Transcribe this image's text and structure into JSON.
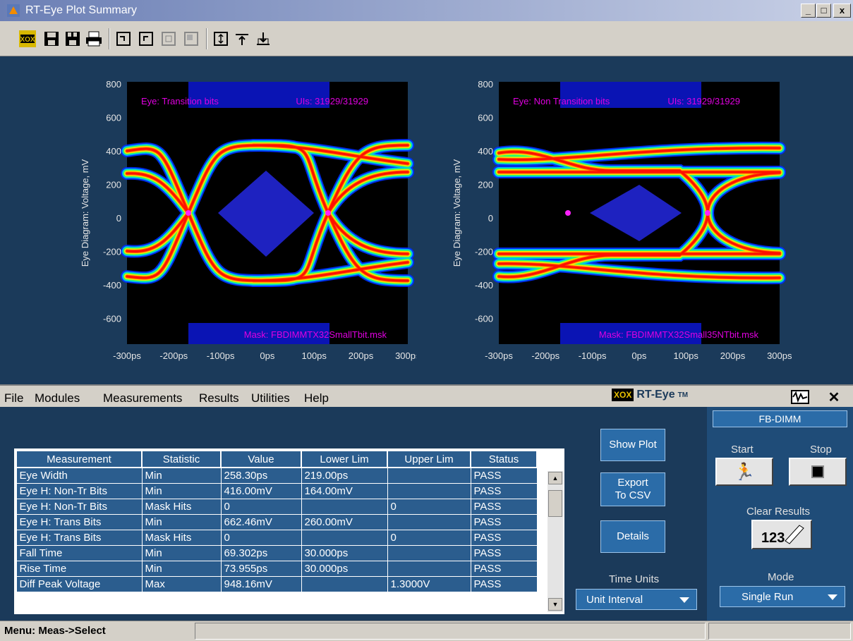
{
  "window": {
    "title": "RT-Eye Plot Summary",
    "min": "_",
    "max": "□",
    "close": "x"
  },
  "toolbar": {
    "icons": [
      "xox-icon",
      "save-icon",
      "save-all-icon",
      "print-icon",
      "zoom-in-icon",
      "zoom-out-icon",
      "zoom-fit-icon",
      "zoom-reset-icon",
      "cursor-v-icon",
      "cursor-top-icon",
      "cursor-bottom-icon"
    ]
  },
  "plots": [
    {
      "ylabel": "Eye Diagram: Voltage, mV",
      "yticks": [
        "800",
        "600",
        "400",
        "200",
        "0",
        "-200",
        "-400",
        "-600"
      ],
      "xticks": [
        "-300ps",
        "-200ps",
        "-100ps",
        "0ps",
        "100ps",
        "200ps",
        "300ps"
      ],
      "eye_label": "Eye: Transition bits",
      "uis": "UIs: 31929/31929",
      "mask": "Mask: FBDIMMTX32SmallTbit.msk"
    },
    {
      "ylabel": "Eye Diagram: Voltage, mV",
      "yticks": [
        "800",
        "600",
        "400",
        "200",
        "0",
        "-200",
        "-400",
        "-600"
      ],
      "xticks": [
        "-300ps",
        "-200ps",
        "-100ps",
        "0ps",
        "100ps",
        "200ps",
        "300ps"
      ],
      "eye_label": "Eye: Non Transition bits",
      "uis": "UIs: 31929/31929",
      "mask": "Mask: FBDIMMTX32Small35NTbit.msk"
    }
  ],
  "menu": {
    "file": "File",
    "modules": "Modules",
    "measurements": "Measurements",
    "results": "Results",
    "utilities": "Utilities",
    "help": "Help"
  },
  "brand": {
    "xox": "XOX",
    "name": "RT-Eye",
    "tm": "TM"
  },
  "table": {
    "headers": [
      "Measurement",
      "Statistic",
      "Value",
      "Lower Lim",
      "Upper Lim",
      "Status"
    ],
    "rows": [
      [
        "Eye Width",
        "Min",
        "258.30ps",
        "219.00ps",
        "",
        "PASS"
      ],
      [
        "Eye H: Non-Tr Bits",
        "Min",
        "416.00mV",
        "164.00mV",
        "",
        "PASS"
      ],
      [
        "Eye H: Non-Tr Bits",
        "Mask Hits",
        "0",
        "",
        "0",
        "PASS"
      ],
      [
        "Eye H: Trans Bits",
        "Min",
        "662.46mV",
        "260.00mV",
        "",
        "PASS"
      ],
      [
        "Eye H: Trans Bits",
        "Mask Hits",
        "0",
        "",
        "0",
        "PASS"
      ],
      [
        "Fall Time",
        "Min",
        "69.302ps",
        "30.000ps",
        "",
        "PASS"
      ],
      [
        "Rise Time",
        "Min",
        "73.955ps",
        "30.000ps",
        "",
        "PASS"
      ],
      [
        "Diff Peak Voltage",
        "Max",
        "948.16mV",
        "",
        "1.3000V",
        "PASS"
      ]
    ]
  },
  "buttons": {
    "show_plot": "Show Plot",
    "export": "Export\nTo CSV",
    "details": "Details"
  },
  "time_units": {
    "label": "Time Units",
    "value": "Unit Interval"
  },
  "right": {
    "module": "FB-DIMM",
    "start": "Start",
    "stop": "Stop",
    "clear": "Clear Results",
    "mode_label": "Mode",
    "mode": "Single Run"
  },
  "status": {
    "text": "Menu: Meas->Select"
  }
}
